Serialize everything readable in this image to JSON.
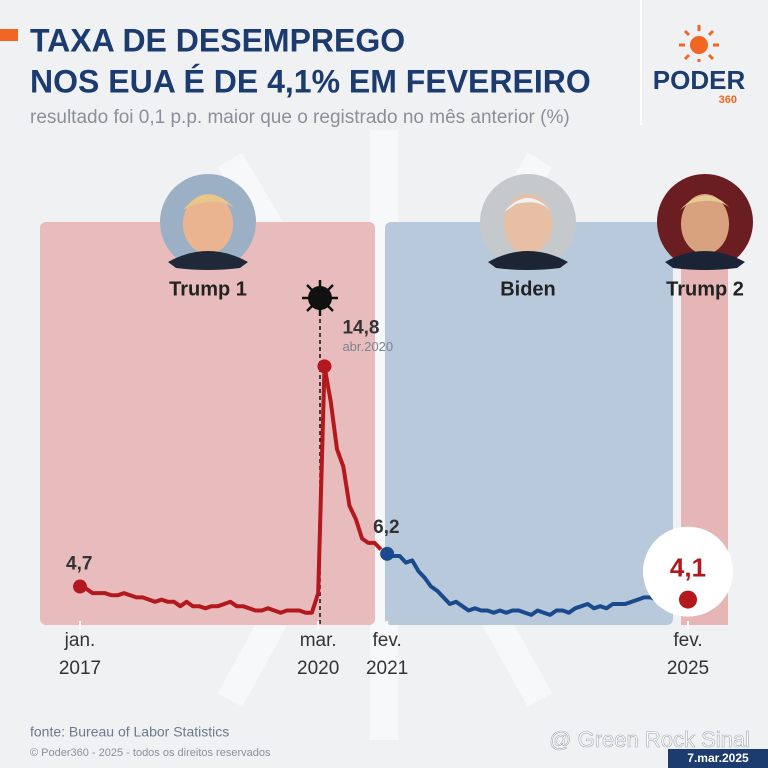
{
  "chart_data": {
    "type": "line",
    "title": [
      "TAXA DE DESEMPREGO",
      "NOS EUA É DE 4,1% EM FEVEREIRO"
    ],
    "subtitle": "resultado foi 0,1 p.p. maior que o registrado no mês anterior (%)",
    "logo": {
      "name": "PODER",
      "number": "360"
    },
    "x": [
      "2017-01",
      "2017-02",
      "2017-03",
      "2017-04",
      "2017-05",
      "2017-06",
      "2017-07",
      "2017-08",
      "2017-09",
      "2017-10",
      "2017-11",
      "2017-12",
      "2018-01",
      "2018-02",
      "2018-03",
      "2018-04",
      "2018-05",
      "2018-06",
      "2018-07",
      "2018-08",
      "2018-09",
      "2018-10",
      "2018-11",
      "2018-12",
      "2019-01",
      "2019-02",
      "2019-03",
      "2019-04",
      "2019-05",
      "2019-06",
      "2019-07",
      "2019-08",
      "2019-09",
      "2019-10",
      "2019-11",
      "2019-12",
      "2020-01",
      "2020-02",
      "2020-03",
      "2020-04",
      "2020-05",
      "2020-06",
      "2020-07",
      "2020-08",
      "2020-09",
      "2020-10",
      "2020-11",
      "2020-12",
      "2021-01",
      "2021-02",
      "2021-03",
      "2021-04",
      "2021-05",
      "2021-06",
      "2021-07",
      "2021-08",
      "2021-09",
      "2021-10",
      "2021-11",
      "2021-12",
      "2022-01",
      "2022-02",
      "2022-03",
      "2022-04",
      "2022-05",
      "2022-06",
      "2022-07",
      "2022-08",
      "2022-09",
      "2022-10",
      "2022-11",
      "2022-12",
      "2023-01",
      "2023-02",
      "2023-03",
      "2023-04",
      "2023-05",
      "2023-06",
      "2023-07",
      "2023-08",
      "2023-09",
      "2023-10",
      "2023-11",
      "2023-12",
      "2024-01",
      "2024-02",
      "2024-03",
      "2024-04",
      "2024-05",
      "2024-06",
      "2024-07",
      "2024-08",
      "2024-09",
      "2024-10",
      "2024-11",
      "2024-12",
      "2025-01",
      "2025-02"
    ],
    "series": [
      {
        "name": "Trump 1",
        "color": "#b3181e",
        "values": [
          4.7,
          4.6,
          4.4,
          4.4,
          4.4,
          4.3,
          4.3,
          4.4,
          4.3,
          4.2,
          4.2,
          4.1,
          4.0,
          4.1,
          4.0,
          4.0,
          3.8,
          4.0,
          3.8,
          3.8,
          3.7,
          3.8,
          3.8,
          3.9,
          4.0,
          3.8,
          3.8,
          3.7,
          3.6,
          3.6,
          3.7,
          3.6,
          3.5,
          3.6,
          3.6,
          3.6,
          3.5,
          3.5,
          4.4,
          14.8,
          13.2,
          11.0,
          10.2,
          8.4,
          7.8,
          6.9,
          6.7,
          6.7,
          6.4,
          null,
          null,
          null,
          null,
          null,
          null,
          null,
          null,
          null,
          null,
          null,
          null,
          null,
          null,
          null,
          null,
          null,
          null,
          null,
          null,
          null,
          null,
          null,
          null,
          null,
          null,
          null,
          null,
          null,
          null,
          null,
          null,
          null,
          null,
          null,
          null,
          null,
          null,
          null,
          null,
          null,
          null,
          null,
          null,
          null,
          null,
          null,
          null,
          null
        ],
        "value_labels": [
          "4,7",
          null,
          null,
          null,
          null,
          null,
          null,
          null,
          null,
          null,
          null,
          null,
          null,
          null,
          null,
          null,
          null,
          null,
          null,
          null,
          null,
          null,
          null,
          null,
          null,
          null,
          null,
          null,
          null,
          null,
          null,
          null,
          null,
          null,
          null,
          null,
          null,
          null,
          null,
          "14,8",
          null,
          null,
          null,
          null,
          null,
          null,
          null,
          null,
          null,
          null,
          null,
          null,
          null,
          null,
          null,
          null,
          null,
          null,
          null,
          null,
          null,
          null,
          null,
          null,
          null,
          null,
          null,
          null,
          null,
          null,
          null,
          null,
          null,
          null,
          null,
          null,
          null,
          null,
          null,
          null,
          null,
          null,
          null,
          null,
          null,
          null,
          null,
          null,
          null,
          null,
          null,
          null,
          null,
          null,
          null,
          null,
          null,
          null
        ]
      },
      {
        "name": "Biden",
        "color": "#1a4a8c",
        "values": [
          null,
          null,
          null,
          null,
          null,
          null,
          null,
          null,
          null,
          null,
          null,
          null,
          null,
          null,
          null,
          null,
          null,
          null,
          null,
          null,
          null,
          null,
          null,
          null,
          null,
          null,
          null,
          null,
          null,
          null,
          null,
          null,
          null,
          null,
          null,
          null,
          null,
          null,
          null,
          null,
          null,
          null,
          null,
          null,
          null,
          null,
          null,
          null,
          null,
          6.2,
          6.1,
          6.1,
          5.8,
          5.9,
          5.4,
          5.1,
          4.7,
          4.5,
          4.2,
          3.9,
          4.0,
          3.8,
          3.6,
          3.7,
          3.6,
          3.6,
          3.5,
          3.6,
          3.5,
          3.6,
          3.6,
          3.5,
          3.4,
          3.6,
          3.5,
          3.4,
          3.6,
          3.6,
          3.5,
          3.7,
          3.8,
          3.9,
          3.7,
          3.8,
          3.7,
          3.9,
          3.9,
          3.9,
          4.0,
          4.1,
          4.2,
          4.2,
          4.1,
          4.1,
          4.2,
          4.1,
          4.0,
          null
        ],
        "value_labels": [
          null,
          null,
          null,
          null,
          null,
          null,
          null,
          null,
          null,
          null,
          null,
          null,
          null,
          null,
          null,
          null,
          null,
          null,
          null,
          null,
          null,
          null,
          null,
          null,
          null,
          null,
          null,
          null,
          null,
          null,
          null,
          null,
          null,
          null,
          null,
          null,
          null,
          null,
          null,
          null,
          null,
          null,
          null,
          null,
          null,
          null,
          null,
          null,
          null,
          "6,2",
          null,
          null,
          null,
          null,
          null,
          null,
          null,
          null,
          null,
          null,
          null,
          null,
          null,
          null,
          null,
          null,
          null,
          null,
          null,
          null,
          null,
          null,
          null,
          null,
          null,
          null,
          null,
          null,
          null,
          null,
          null,
          null,
          null,
          null,
          null,
          null,
          null,
          null,
          null,
          null,
          null,
          null,
          null,
          null,
          null,
          null,
          null,
          null
        ]
      },
      {
        "name": "Trump 2",
        "color": "#b3181e",
        "values": [
          null,
          null,
          null,
          null,
          null,
          null,
          null,
          null,
          null,
          null,
          null,
          null,
          null,
          null,
          null,
          null,
          null,
          null,
          null,
          null,
          null,
          null,
          null,
          null,
          null,
          null,
          null,
          null,
          null,
          null,
          null,
          null,
          null,
          null,
          null,
          null,
          null,
          null,
          null,
          null,
          null,
          null,
          null,
          null,
          null,
          null,
          null,
          null,
          null,
          null,
          null,
          null,
          null,
          null,
          null,
          null,
          null,
          null,
          null,
          null,
          null,
          null,
          null,
          null,
          null,
          null,
          null,
          null,
          null,
          null,
          null,
          null,
          null,
          null,
          null,
          null,
          null,
          null,
          null,
          null,
          null,
          null,
          null,
          null,
          null,
          null,
          null,
          null,
          null,
          null,
          null,
          null,
          null,
          null,
          null,
          null,
          null,
          4.1
        ],
        "value_labels": [
          null,
          null,
          null,
          null,
          null,
          null,
          null,
          null,
          null,
          null,
          null,
          null,
          null,
          null,
          null,
          null,
          null,
          null,
          null,
          null,
          null,
          null,
          null,
          null,
          null,
          null,
          null,
          null,
          null,
          null,
          null,
          null,
          null,
          null,
          null,
          null,
          null,
          null,
          null,
          null,
          null,
          null,
          null,
          null,
          null,
          null,
          null,
          null,
          null,
          null,
          null,
          null,
          null,
          null,
          null,
          null,
          null,
          null,
          null,
          null,
          null,
          null,
          null,
          null,
          null,
          null,
          null,
          null,
          null,
          null,
          null,
          null,
          null,
          null,
          null,
          null,
          null,
          null,
          null,
          null,
          null,
          null,
          null,
          null,
          null,
          null,
          null,
          null,
          null,
          null,
          null,
          null,
          null,
          null,
          null,
          null,
          null,
          "4,1"
        ]
      }
    ],
    "annotations": [
      "abr.2020"
    ],
    "xticks": [
      {
        "value": "2017-01",
        "label": "jan. 2017"
      },
      {
        "value": "2020-03",
        "label": "mar. 2020"
      },
      {
        "value": "2021-02",
        "label": "fev. 2021"
      },
      {
        "value": "2025-02",
        "label": "fev. 2025"
      }
    ],
    "ylim": [
      0,
      15
    ],
    "source": "fonte: Bureau of Labor Statistics",
    "copyright": "© Poder360 - 2025 - todos os direitos reservados",
    "date": "7.mar.2025",
    "watermark": "@ Green Rock Sinal"
  }
}
